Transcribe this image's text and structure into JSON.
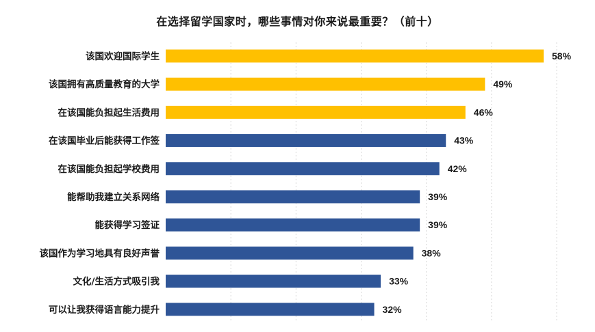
{
  "chart_data": {
    "type": "bar",
    "orientation": "horizontal",
    "title": "在选择留学国家时，哪些事情对你来说最重要？（前十）",
    "categories": [
      "该国欢迎国际学生",
      "该国拥有高质量教育的大学",
      "在该国能负担起生活费用",
      "在该国毕业后能获得工作签",
      "在该国能负担起学校费用",
      "能帮助我建立关系网络",
      "能获得学习签证",
      "该国作为学习地具有良好声誉",
      "文化/生活方式吸引我",
      "可以让我获得语言能力提升"
    ],
    "values": [
      58,
      49,
      46,
      43,
      42,
      39,
      39,
      38,
      33,
      32
    ],
    "value_labels": [
      "58%",
      "49%",
      "46%",
      "43%",
      "42%",
      "39%",
      "39%",
      "38%",
      "33%",
      "32%"
    ],
    "bar_colors": [
      "#FFC000",
      "#FFC000",
      "#FFC000",
      "#2F5597",
      "#2F5597",
      "#2F5597",
      "#2F5597",
      "#2F5597",
      "#2F5597",
      "#2F5597"
    ],
    "xlim": [
      0,
      60
    ],
    "grid": true,
    "legend": "none"
  }
}
